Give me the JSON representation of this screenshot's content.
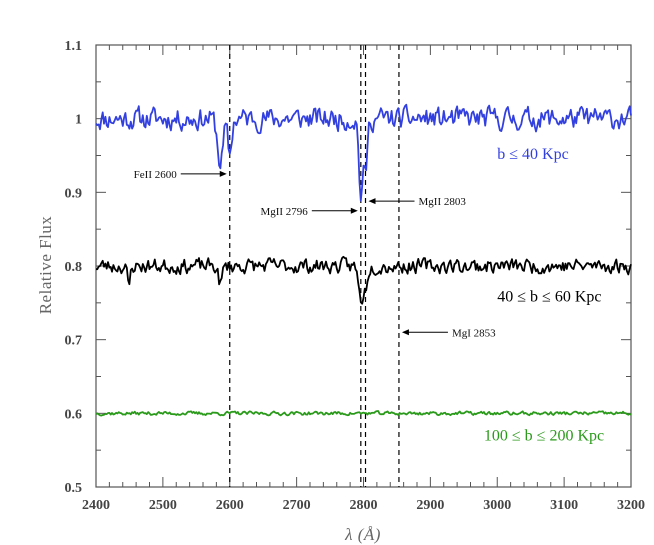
{
  "chart_data": {
    "type": "line",
    "title": "",
    "xlabel": "λ (Å)",
    "ylabel": "Relative Flux",
    "xlim": [
      2400,
      3200
    ],
    "ylim": [
      0.5,
      1.1
    ],
    "x_ticks": [
      2400,
      2500,
      2600,
      2700,
      2800,
      2900,
      3000,
      3100,
      3200
    ],
    "x_tick_labels": [
      "2400",
      "2500",
      "2600",
      "2700",
      "2800",
      "2900",
      "3000",
      "3100",
      "3200"
    ],
    "y_ticks": [
      0.5,
      0.6,
      0.7,
      0.8,
      0.9,
      1.0,
      1.1
    ],
    "y_tick_labels": [
      "0.5",
      "0.6",
      "0.7",
      "0.8",
      "0.9",
      "1",
      "1.1"
    ],
    "grid": false,
    "vertical_lines": [
      2600,
      2796,
      2803,
      2853
    ],
    "series": [
      {
        "name": "b ≤ 40 Kpc",
        "color": "#3340e0",
        "baseline": 1.0,
        "noise": 0.018,
        "seed": 11,
        "features": [
          {
            "center": 2586,
            "depth": 0.06,
            "width": 6
          },
          {
            "center": 2600,
            "depth": 0.05,
            "width": 4
          },
          {
            "center": 2796,
            "depth": 0.1,
            "width": 4
          },
          {
            "center": 2803,
            "depth": 0.07,
            "width": 4
          }
        ]
      },
      {
        "name": "40 ≤ b ≤ 60 Kpc",
        "color": "#000000",
        "baseline": 0.8,
        "noise": 0.012,
        "seed": 23,
        "features": [
          {
            "center": 2449,
            "depth": 0.03,
            "width": 3
          },
          {
            "center": 2586,
            "depth": 0.025,
            "width": 4
          },
          {
            "center": 2796,
            "depth": 0.045,
            "width": 5
          },
          {
            "center": 2803,
            "depth": 0.025,
            "width": 4
          }
        ]
      },
      {
        "name": "100 ≤ b ≤ 200 Kpc",
        "color": "#2a9a1a",
        "baseline": 0.6,
        "noise": 0.003,
        "seed": 37,
        "features": []
      }
    ],
    "annotations": [
      {
        "text": "FeII 2600",
        "line_x": 2600,
        "y": 0.925,
        "side": "left"
      },
      {
        "text": "MgII 2796",
        "line_x": 2796,
        "y": 0.875,
        "side": "left"
      },
      {
        "text": "MgII 2803",
        "line_x": 2803,
        "y": 0.888,
        "side": "right"
      },
      {
        "text": "MgI 2853",
        "line_x": 2853,
        "y": 0.71,
        "side": "right"
      }
    ],
    "series_labels": [
      {
        "text": "b ≤ 40 Kpc",
        "x": 3000,
        "y": 0.945,
        "color": "#3340e0"
      },
      {
        "text": "40 ≤ b ≤ 60 Kpc",
        "x": 3000,
        "y": 0.752,
        "color": "#000000"
      },
      {
        "text": "100 ≤ b ≤ 200 Kpc",
        "x": 2980,
        "y": 0.563,
        "color": "#2a9a1a"
      }
    ]
  }
}
